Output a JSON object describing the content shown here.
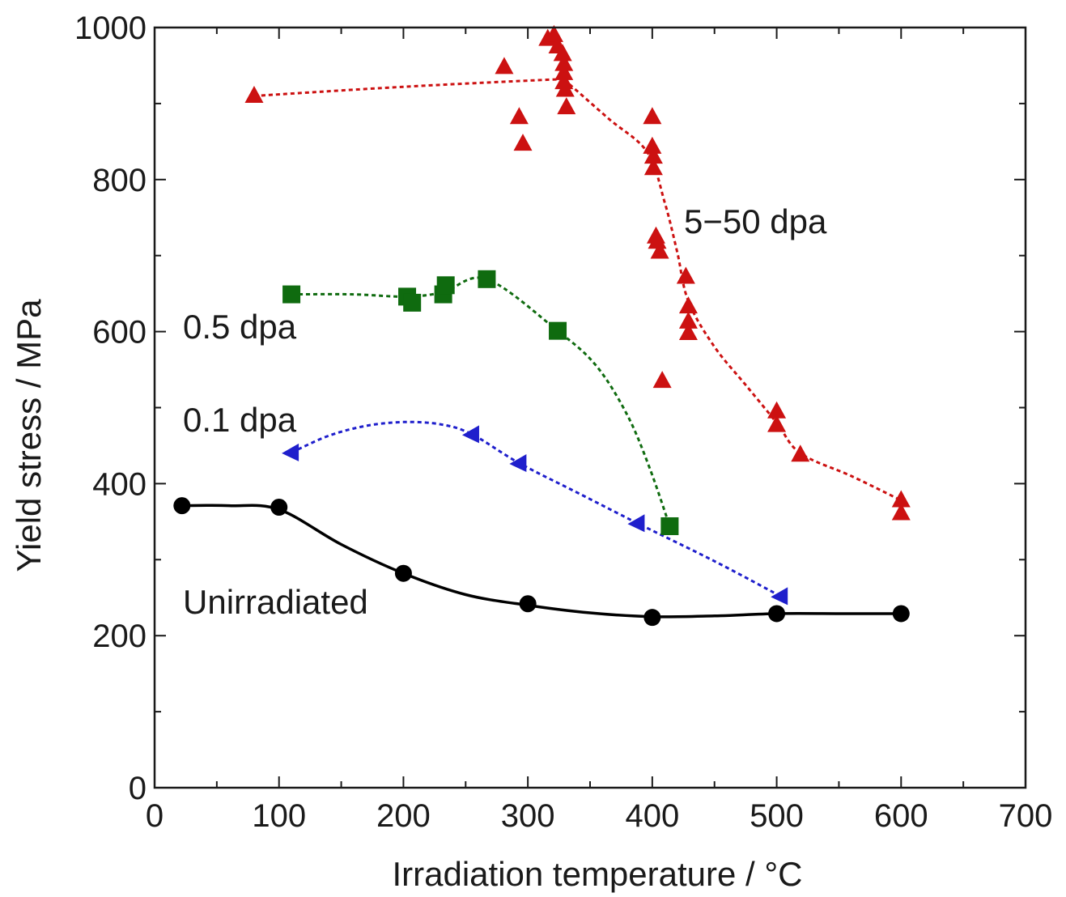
{
  "chart_data": {
    "type": "scatter",
    "xlabel": "Irradiation temperature / °C",
    "ylabel": "Yield stress / MPa",
    "xlim": [
      0,
      700
    ],
    "ylim": [
      0,
      1000
    ],
    "x_ticks": [
      "0",
      "100",
      "200",
      "300",
      "400",
      "500",
      "600",
      "700"
    ],
    "y_ticks": [
      "0",
      "200",
      "400",
      "600",
      "800",
      "1000"
    ],
    "grid": false,
    "legend": "none",
    "series": [
      {
        "name": "Unirradiated",
        "marker": "circle",
        "color": "#000000",
        "line_style": "solid",
        "points": [
          [
            22,
            371
          ],
          [
            100,
            369
          ],
          [
            200,
            282
          ],
          [
            300,
            242
          ],
          [
            400,
            224
          ],
          [
            500,
            229
          ],
          [
            600,
            229
          ]
        ],
        "fit": [
          [
            22,
            371
          ],
          [
            60,
            371
          ],
          [
            100,
            366
          ],
          [
            150,
            320
          ],
          [
            200,
            282
          ],
          [
            250,
            254
          ],
          [
            300,
            240
          ],
          [
            350,
            230
          ],
          [
            400,
            225
          ],
          [
            450,
            226
          ],
          [
            500,
            229
          ],
          [
            550,
            229
          ],
          [
            600,
            229
          ]
        ]
      },
      {
        "name": "0.1 dpa",
        "marker": "triangle-left",
        "color": "#1f1fcc",
        "line_style": "dotted",
        "points": [
          [
            110,
            441
          ],
          [
            255,
            465
          ],
          [
            293,
            427
          ],
          [
            388,
            348
          ],
          [
            503,
            252
          ]
        ],
        "fit": [
          [
            110,
            441
          ],
          [
            140,
            463
          ],
          [
            170,
            476
          ],
          [
            200,
            481
          ],
          [
            230,
            478
          ],
          [
            255,
            465
          ],
          [
            293,
            427
          ],
          [
            340,
            388
          ],
          [
            388,
            348
          ],
          [
            450,
            298
          ],
          [
            503,
            252
          ]
        ]
      },
      {
        "name": "0.5 dpa",
        "marker": "square",
        "color": "#0f6b0f",
        "line_style": "dotted",
        "points": [
          [
            110,
            649
          ],
          [
            203,
            646
          ],
          [
            207,
            638
          ],
          [
            232,
            649
          ],
          [
            234,
            661
          ],
          [
            267,
            669
          ],
          [
            324,
            601
          ],
          [
            414,
            344
          ]
        ],
        "fit": [
          [
            110,
            649
          ],
          [
            160,
            649
          ],
          [
            203,
            646
          ],
          [
            232,
            652
          ],
          [
            267,
            669
          ],
          [
            324,
            601
          ],
          [
            355,
            555
          ],
          [
            380,
            490
          ],
          [
            398,
            420
          ],
          [
            414,
            344
          ]
        ]
      },
      {
        "name": "5–50 dpa",
        "marker": "triangle-up",
        "color": "#cc1111",
        "line_style": "dotted",
        "points": [
          [
            80,
            910
          ],
          [
            281,
            948
          ],
          [
            293,
            882
          ],
          [
            296,
            847
          ],
          [
            316,
            985
          ],
          [
            321,
            990
          ],
          [
            324,
            975
          ],
          [
            328,
            965
          ],
          [
            329,
            952
          ],
          [
            329,
            940
          ],
          [
            329,
            928
          ],
          [
            330,
            918
          ],
          [
            331,
            895
          ],
          [
            400,
            882
          ],
          [
            400,
            843
          ],
          [
            401,
            830
          ],
          [
            401,
            815
          ],
          [
            403,
            725
          ],
          [
            404,
            718
          ],
          [
            406,
            705
          ],
          [
            408,
            535
          ],
          [
            427,
            672
          ],
          [
            429,
            633
          ],
          [
            429,
            613
          ],
          [
            429,
            598
          ],
          [
            500,
            495
          ],
          [
            500,
            477
          ],
          [
            519,
            438
          ],
          [
            600,
            378
          ],
          [
            600,
            361
          ]
        ],
        "fit": [
          [
            80,
            910
          ],
          [
            200,
            922
          ],
          [
            326,
            932
          ],
          [
            330,
            930
          ],
          [
            365,
            880
          ],
          [
            396,
            836
          ],
          [
            410,
            770
          ],
          [
            420,
            705
          ],
          [
            429,
            640
          ],
          [
            450,
            580
          ],
          [
            475,
            530
          ],
          [
            500,
            480
          ],
          [
            519,
            440
          ],
          [
            560,
            410
          ],
          [
            600,
            378
          ]
        ]
      }
    ],
    "annotations": [
      "5−50 dpa",
      "0.5 dpa",
      "0.1 dpa",
      "Unirradiated"
    ]
  }
}
